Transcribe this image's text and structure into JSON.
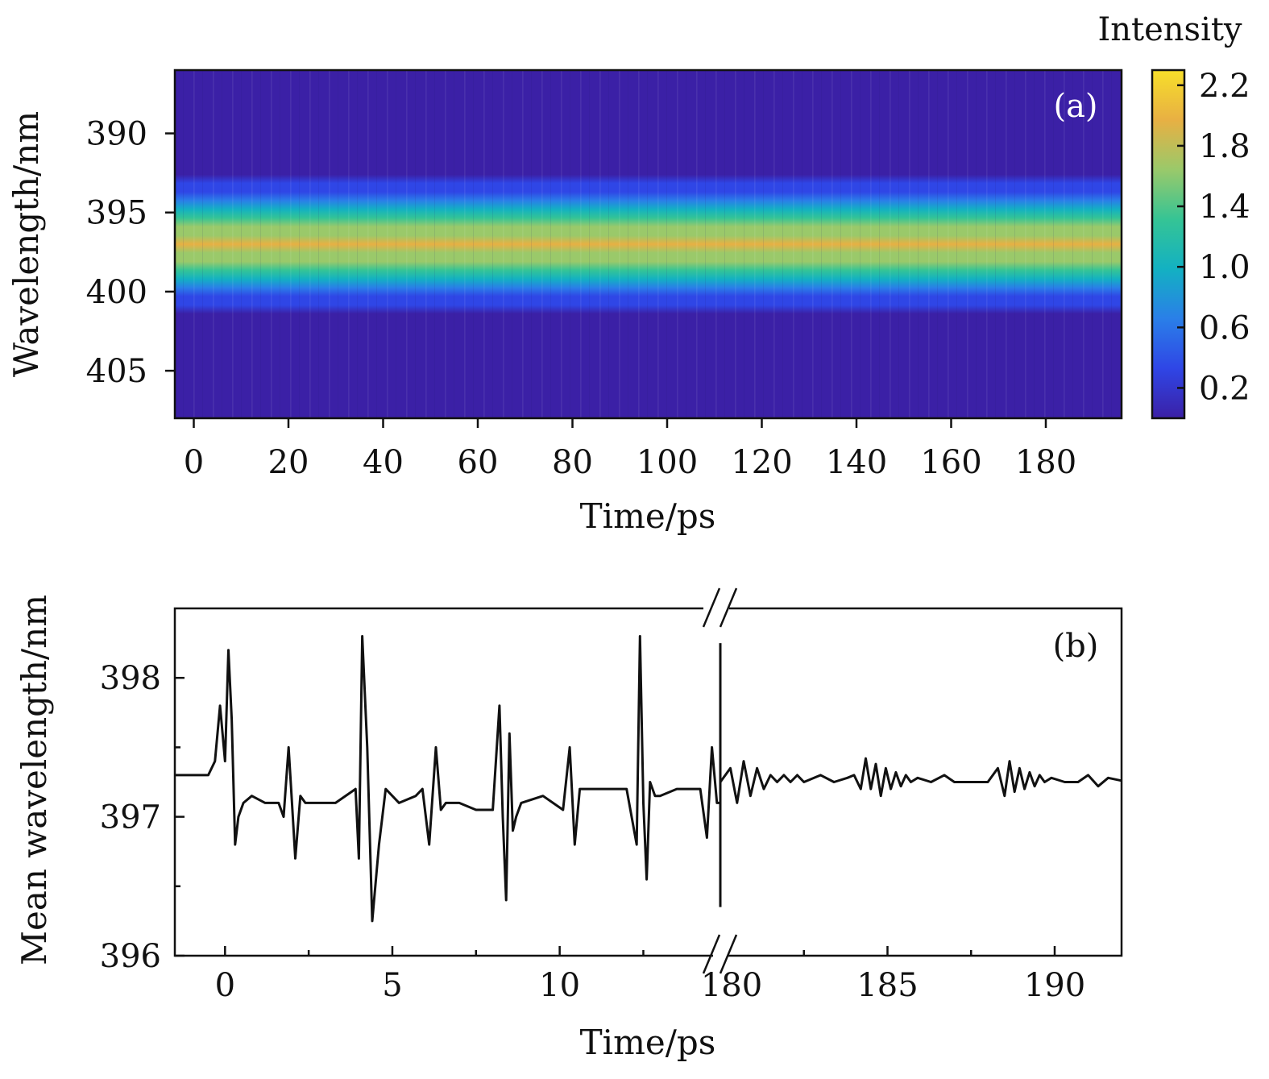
{
  "colors": {
    "line": "#111111",
    "colormap": [
      "#3b20a6",
      "#2f46e6",
      "#2a7fe8",
      "#13b1c2",
      "#35c495",
      "#9ac96a",
      "#e8b043",
      "#f7df2a"
    ]
  },
  "chart_data": [
    {
      "panel": "(a)",
      "type": "heatmap",
      "xlabel": "Time/ps",
      "ylabel": "Wavelength/nm",
      "xlim": [
        -4,
        196
      ],
      "ylim": [
        408,
        386
      ],
      "xticks": [
        "0",
        "20",
        "40",
        "60",
        "80",
        "100",
        "120",
        "140",
        "160",
        "180"
      ],
      "yticks": [
        "390",
        "395",
        "400",
        "405"
      ],
      "band": {
        "center_nm": 397.0,
        "width_nm": 2.2,
        "peak_intensity": 1.8
      },
      "colorbar": {
        "title": "Intensity",
        "range": [
          0.0,
          2.3
        ],
        "ticks": [
          "2.2",
          "1.8",
          "1.4",
          "1.0",
          "0.6",
          "0.2"
        ]
      }
    },
    {
      "panel": "(b)",
      "type": "line",
      "xlabel": "Time/ps",
      "ylabel": "Mean wavelength/nm",
      "ylim": [
        396.0,
        398.5
      ],
      "yticks": [
        "398",
        "397",
        "396"
      ],
      "axis_break": true,
      "segments": [
        {
          "xlim": [
            -1.5,
            14.8
          ],
          "xticks": [
            "0",
            "5",
            "10"
          ]
        },
        {
          "xlim": [
            180.0,
            192.0
          ],
          "xticks": [
            "180",
            "185",
            "190"
          ]
        }
      ],
      "series": [
        {
          "x": [
            -1.5,
            -0.5,
            -0.3,
            -0.15,
            0.0,
            0.1,
            0.2,
            0.3,
            0.4,
            0.55,
            0.8,
            1.2,
            1.6,
            1.75,
            1.9,
            2.0,
            2.1,
            2.25,
            2.4,
            2.8,
            3.3,
            3.9,
            4.0,
            4.1,
            4.25,
            4.4,
            4.6,
            4.8,
            5.2,
            5.7,
            5.9,
            6.1,
            6.3,
            6.45,
            6.6,
            7.0,
            7.5,
            8.0,
            8.2,
            8.3,
            8.4,
            8.5,
            8.6,
            8.7,
            8.85,
            9.5,
            10.1,
            10.3,
            10.45,
            10.6,
            10.8,
            11.5,
            12.0,
            12.3,
            12.4,
            12.5,
            12.6,
            12.7,
            12.85,
            13.0,
            13.5,
            14.2,
            14.4,
            14.55,
            14.7,
            14.8
          ],
          "y": [
            397.3,
            397.3,
            397.4,
            397.8,
            397.4,
            398.2,
            397.7,
            396.8,
            397.0,
            397.1,
            397.15,
            397.1,
            397.1,
            397.0,
            397.5,
            397.1,
            396.7,
            397.15,
            397.1,
            397.1,
            397.1,
            397.2,
            396.7,
            398.3,
            397.5,
            396.25,
            396.8,
            397.2,
            397.1,
            397.15,
            397.2,
            396.8,
            397.5,
            397.05,
            397.1,
            397.1,
            397.05,
            397.05,
            397.8,
            397.0,
            396.4,
            397.6,
            396.9,
            397.0,
            397.1,
            397.15,
            397.05,
            397.5,
            396.8,
            397.2,
            397.2,
            397.2,
            397.2,
            396.8,
            398.3,
            397.1,
            396.55,
            397.25,
            397.15,
            397.15,
            397.2,
            397.2,
            396.85,
            397.5,
            397.1,
            397.1
          ]
        },
        {
          "x": [
            180.0,
            180.3,
            180.5,
            180.7,
            180.9,
            181.1,
            181.3,
            181.5,
            181.7,
            181.9,
            182.1,
            182.3,
            182.5,
            183.0,
            183.4,
            183.8,
            184.0,
            184.2,
            184.35,
            184.5,
            184.65,
            184.8,
            184.95,
            185.1,
            185.25,
            185.4,
            185.55,
            185.7,
            185.9,
            186.3,
            186.7,
            187.0,
            187.5,
            188.0,
            188.3,
            188.5,
            188.65,
            188.8,
            188.95,
            189.1,
            189.25,
            189.4,
            189.55,
            189.7,
            189.9,
            190.3,
            190.7,
            191.0,
            191.3,
            191.6,
            192.0
          ],
          "y": [
            397.25,
            397.35,
            397.1,
            397.4,
            397.15,
            397.35,
            397.2,
            397.3,
            397.25,
            397.3,
            397.25,
            397.3,
            397.25,
            397.3,
            397.25,
            397.28,
            397.3,
            397.2,
            397.42,
            397.2,
            397.38,
            397.15,
            397.35,
            397.2,
            397.32,
            397.22,
            397.3,
            397.25,
            397.28,
            397.25,
            397.3,
            397.25,
            397.25,
            397.25,
            397.35,
            397.15,
            397.4,
            397.18,
            397.35,
            397.2,
            397.32,
            397.22,
            397.3,
            397.25,
            397.28,
            397.25,
            397.25,
            397.3,
            397.22,
            397.28,
            397.26
          ]
        }
      ]
    }
  ]
}
